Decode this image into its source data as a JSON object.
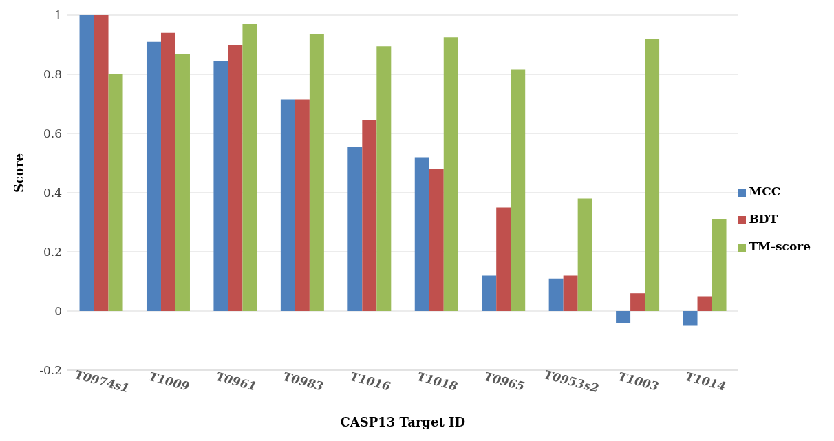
{
  "chart_data": {
    "type": "bar",
    "xlabel": "CASP13 Target ID",
    "ylabel": "Score",
    "categories": [
      "T0974s1",
      "T1009",
      "T0961",
      "T0983",
      "T1016",
      "T1018",
      "T0965",
      "T0953s2",
      "T1003",
      "T1014"
    ],
    "series": [
      {
        "name": "MCC",
        "color": "#4f81bd",
        "values": [
          1.0,
          0.91,
          0.845,
          0.715,
          0.555,
          0.52,
          0.12,
          0.11,
          -0.04,
          -0.05
        ]
      },
      {
        "name": "BDT",
        "color": "#c0504d",
        "values": [
          1.0,
          0.94,
          0.9,
          0.715,
          0.645,
          0.48,
          0.35,
          0.12,
          0.06,
          0.05
        ]
      },
      {
        "name": "TM-score",
        "color": "#9bbb59",
        "values": [
          0.8,
          0.87,
          0.97,
          0.935,
          0.895,
          0.925,
          0.815,
          0.38,
          0.92,
          0.31
        ]
      }
    ],
    "ylim": [
      -0.2,
      1
    ],
    "yticks": [
      -0.2,
      0,
      0.2,
      0.4,
      0.6,
      0.8,
      1
    ],
    "grid": "y",
    "legend": "right"
  }
}
